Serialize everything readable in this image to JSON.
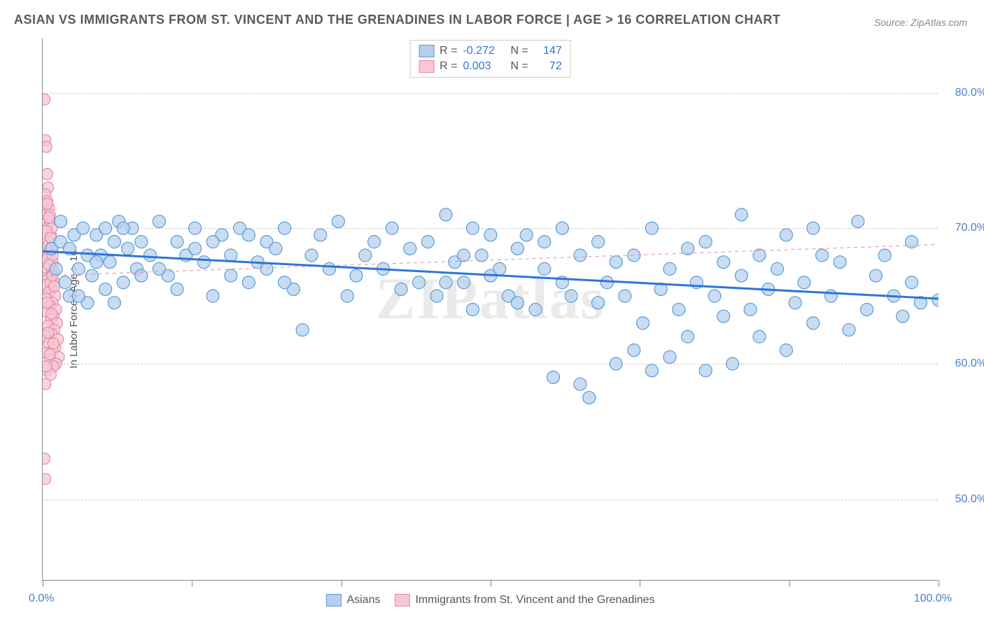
{
  "title": "ASIAN VS IMMIGRANTS FROM ST. VINCENT AND THE GRENADINES IN LABOR FORCE | AGE > 16 CORRELATION CHART",
  "source": "Source: ZipAtlas.com",
  "watermark": "ZIPatlas",
  "yaxis_title": "In Labor Force | Age > 16",
  "chart": {
    "type": "scatter",
    "xlim": [
      0,
      100
    ],
    "ylim": [
      44,
      84
    ],
    "x_min_label": "0.0%",
    "x_max_label": "100.0%",
    "y_ticks": [
      50,
      60,
      70,
      80
    ],
    "y_tick_labels": [
      "50.0%",
      "60.0%",
      "70.0%",
      "80.0%"
    ],
    "x_tick_positions": [
      0,
      16.67,
      33.33,
      50,
      66.67,
      83.33,
      100
    ],
    "background_color": "#ffffff",
    "grid_color": "#cccccc",
    "axis_color": "#888888",
    "label_color": "#4a7fc9",
    "series": [
      {
        "name": "Asians",
        "fill": "#b5d0ee",
        "stroke": "#5a9bd5",
        "opacity": 0.75,
        "marker_radius": 9,
        "R": "-0.272",
        "N": "147",
        "trend": {
          "x1": 0,
          "y1": 68.3,
          "x2": 100,
          "y2": 64.8,
          "color": "#2e75d6",
          "width": 3,
          "dash": "none"
        },
        "points": [
          [
            1,
            68.5
          ],
          [
            1.5,
            67
          ],
          [
            2,
            69
          ],
          [
            2.5,
            66
          ],
          [
            3,
            68.5
          ],
          [
            3.5,
            69.5
          ],
          [
            4,
            67
          ],
          [
            4.5,
            70
          ],
          [
            5,
            68
          ],
          [
            5.5,
            66.5
          ],
          [
            6,
            69.5
          ],
          [
            6.5,
            68
          ],
          [
            7,
            70
          ],
          [
            7.5,
            67.5
          ],
          [
            8,
            69
          ],
          [
            8.5,
            70.5
          ],
          [
            9,
            66
          ],
          [
            9.5,
            68.5
          ],
          [
            10,
            70
          ],
          [
            10.5,
            67
          ],
          [
            11,
            69
          ],
          [
            12,
            68
          ],
          [
            13,
            70.5
          ],
          [
            14,
            66.5
          ],
          [
            15,
            69
          ],
          [
            16,
            68
          ],
          [
            17,
            70
          ],
          [
            18,
            67.5
          ],
          [
            19,
            65
          ],
          [
            20,
            69.5
          ],
          [
            21,
            68
          ],
          [
            22,
            70
          ],
          [
            23,
            66
          ],
          [
            24,
            67.5
          ],
          [
            25,
            69
          ],
          [
            26,
            68.5
          ],
          [
            27,
            70
          ],
          [
            28,
            65.5
          ],
          [
            29,
            62.5
          ],
          [
            30,
            68
          ],
          [
            31,
            69.5
          ],
          [
            32,
            67
          ],
          [
            33,
            70.5
          ],
          [
            34,
            65
          ],
          [
            35,
            66.5
          ],
          [
            36,
            68
          ],
          [
            37,
            69
          ],
          [
            38,
            67
          ],
          [
            39,
            70
          ],
          [
            40,
            65.5
          ],
          [
            41,
            68.5
          ],
          [
            42,
            66
          ],
          [
            43,
            69
          ],
          [
            44,
            65
          ],
          [
            45,
            71
          ],
          [
            46,
            67.5
          ],
          [
            47,
            66
          ],
          [
            48,
            70
          ],
          [
            48,
            64
          ],
          [
            49,
            68
          ],
          [
            50,
            66.5
          ],
          [
            51,
            67
          ],
          [
            52,
            65
          ],
          [
            53,
            68.5
          ],
          [
            54,
            69.5
          ],
          [
            55,
            64
          ],
          [
            56,
            67
          ],
          [
            57,
            59
          ],
          [
            58,
            70
          ],
          [
            58,
            66
          ],
          [
            59,
            65
          ],
          [
            60,
            58.5
          ],
          [
            60,
            68
          ],
          [
            61,
            57.5
          ],
          [
            62,
            64.5
          ],
          [
            62,
            69
          ],
          [
            63,
            66
          ],
          [
            64,
            60
          ],
          [
            64,
            67.5
          ],
          [
            65,
            65
          ],
          [
            66,
            68
          ],
          [
            66,
            61
          ],
          [
            67,
            63
          ],
          [
            68,
            70
          ],
          [
            68,
            59.5
          ],
          [
            69,
            65.5
          ],
          [
            70,
            67
          ],
          [
            70,
            60.5
          ],
          [
            71,
            64
          ],
          [
            72,
            68.5
          ],
          [
            72,
            62
          ],
          [
            73,
            66
          ],
          [
            74,
            59.5
          ],
          [
            74,
            69
          ],
          [
            75,
            65
          ],
          [
            76,
            67.5
          ],
          [
            76,
            63.5
          ],
          [
            77,
            60
          ],
          [
            78,
            66.5
          ],
          [
            78,
            71
          ],
          [
            79,
            64
          ],
          [
            80,
            68
          ],
          [
            80,
            62
          ],
          [
            81,
            65.5
          ],
          [
            82,
            67
          ],
          [
            83,
            61
          ],
          [
            83,
            69.5
          ],
          [
            84,
            64.5
          ],
          [
            85,
            66
          ],
          [
            86,
            70
          ],
          [
            86,
            63
          ],
          [
            87,
            68
          ],
          [
            88,
            65
          ],
          [
            89,
            67.5
          ],
          [
            90,
            62.5
          ],
          [
            91,
            70.5
          ],
          [
            92,
            64
          ],
          [
            93,
            66.5
          ],
          [
            94,
            68
          ],
          [
            95,
            65
          ],
          [
            96,
            63.5
          ],
          [
            97,
            69
          ],
          [
            97,
            66
          ],
          [
            98,
            64.5
          ],
          [
            100,
            64.7
          ],
          [
            3,
            65
          ],
          [
            5,
            64.5
          ],
          [
            7,
            65.5
          ],
          [
            2,
            70.5
          ],
          [
            4,
            65
          ],
          [
            6,
            67.5
          ],
          [
            8,
            64.5
          ],
          [
            9,
            70
          ],
          [
            11,
            66.5
          ],
          [
            13,
            67
          ],
          [
            15,
            65.5
          ],
          [
            17,
            68.5
          ],
          [
            19,
            69
          ],
          [
            21,
            66.5
          ],
          [
            23,
            69.5
          ],
          [
            25,
            67
          ],
          [
            27,
            66
          ],
          [
            45,
            66
          ],
          [
            47,
            68
          ],
          [
            50,
            69.5
          ],
          [
            53,
            64.5
          ],
          [
            56,
            69
          ]
        ]
      },
      {
        "name": "Immigrants from St. Vincent and the Grenadines",
        "fill": "#f6c7d4",
        "stroke": "#e88aa5",
        "opacity": 0.75,
        "marker_radius": 8,
        "R": "0.003",
        "N": "72",
        "trend": {
          "x1": 0,
          "y1": 66.5,
          "x2": 100,
          "y2": 68.8,
          "color": "#e88aa5",
          "width": 1,
          "dash": "5,5"
        },
        "points": [
          [
            0.2,
            79.5
          ],
          [
            0.3,
            76.5
          ],
          [
            0.4,
            76
          ],
          [
            0.5,
            74
          ],
          [
            0.6,
            73
          ],
          [
            0.3,
            72.5
          ],
          [
            0.7,
            71.5
          ],
          [
            0.4,
            71
          ],
          [
            0.8,
            70.5
          ],
          [
            0.5,
            70
          ],
          [
            0.9,
            69.5
          ],
          [
            0.6,
            69
          ],
          [
            1.0,
            68.5
          ],
          [
            0.3,
            68.3
          ],
          [
            0.7,
            68
          ],
          [
            0.4,
            67.7
          ],
          [
            1.1,
            67.5
          ],
          [
            0.8,
            67.2
          ],
          [
            0.5,
            67
          ],
          [
            1.2,
            66.8
          ],
          [
            0.9,
            66.5
          ],
          [
            0.6,
            66.3
          ],
          [
            1.3,
            66
          ],
          [
            0.3,
            65.8
          ],
          [
            1.0,
            65.5
          ],
          [
            0.7,
            65.3
          ],
          [
            1.4,
            65
          ],
          [
            0.4,
            64.8
          ],
          [
            1.1,
            64.5
          ],
          [
            0.8,
            64.3
          ],
          [
            1.5,
            64
          ],
          [
            0.5,
            63.8
          ],
          [
            1.2,
            63.5
          ],
          [
            0.9,
            63.3
          ],
          [
            1.6,
            63
          ],
          [
            0.6,
            62.8
          ],
          [
            1.3,
            62.5
          ],
          [
            1.0,
            62.2
          ],
          [
            0.3,
            62
          ],
          [
            1.7,
            61.8
          ],
          [
            0.7,
            61.5
          ],
          [
            1.4,
            61.2
          ],
          [
            1.1,
            61
          ],
          [
            0.4,
            60.8
          ],
          [
            1.8,
            60.5
          ],
          [
            0.8,
            60.3
          ],
          [
            1.5,
            60
          ],
          [
            1.2,
            59.8
          ],
          [
            0.5,
            59.5
          ],
          [
            0.9,
            59.2
          ],
          [
            0.2,
            53
          ],
          [
            0.3,
            51.5
          ],
          [
            0.5,
            72
          ],
          [
            0.8,
            71
          ],
          [
            1.0,
            70
          ],
          [
            0.4,
            69.8
          ],
          [
            0.6,
            68.7
          ],
          [
            1.1,
            68
          ],
          [
            0.7,
            67.3
          ],
          [
            0.9,
            66
          ],
          [
            1.3,
            65.7
          ],
          [
            0.5,
            64.5
          ],
          [
            1.0,
            63.7
          ],
          [
            0.6,
            62.3
          ],
          [
            1.2,
            61.5
          ],
          [
            0.8,
            60.7
          ],
          [
            0.4,
            59.8
          ],
          [
            0.3,
            58.5
          ],
          [
            0.7,
            70.8
          ],
          [
            0.5,
            71.8
          ],
          [
            0.9,
            69.3
          ],
          [
            1.1,
            66.5
          ]
        ]
      }
    ]
  },
  "legend_top": {
    "rows": [
      {
        "swatch_fill": "#b5d0ee",
        "swatch_stroke": "#5a9bd5",
        "r_label": "R =",
        "r_value": "-0.272",
        "n_label": "N =",
        "n_value": "147"
      },
      {
        "swatch_fill": "#f6c7d4",
        "swatch_stroke": "#e88aa5",
        "r_label": "R =",
        "r_value": "0.003",
        "n_label": "N =",
        "n_value": "72"
      }
    ]
  },
  "legend_bottom": {
    "items": [
      {
        "swatch_fill": "#b5d0ee",
        "swatch_stroke": "#5a9bd5",
        "label": "Asians"
      },
      {
        "swatch_fill": "#f6c7d4",
        "swatch_stroke": "#e88aa5",
        "label": "Immigrants from St. Vincent and the Grenadines"
      }
    ]
  }
}
